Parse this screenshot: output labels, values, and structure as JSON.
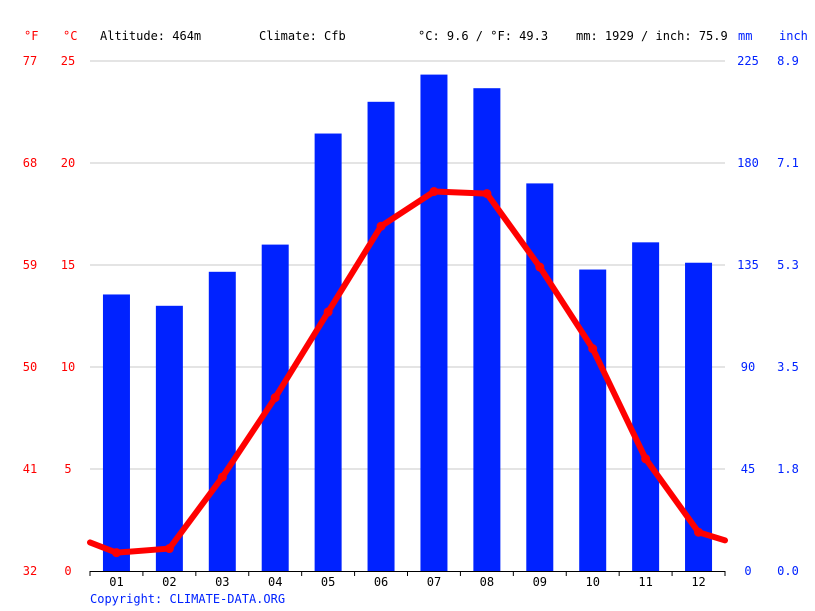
{
  "header": {
    "f_unit": "°F",
    "c_unit": "°C",
    "altitude": "Altitude: 464m",
    "climate": "Climate: Cfb",
    "temp_summary": "°C: 9.6 / °F: 49.3",
    "precip_summary": "mm: 1929 / inch: 75.9",
    "mm_unit": "mm",
    "inch_unit": "inch"
  },
  "copyright": "Copyright: CLIMATE-DATA.ORG",
  "colors": {
    "temperature": "#ff0000",
    "precipitation": "#0022ff",
    "grid": "#c8c8c8",
    "axis_text_left": "#ff0000",
    "axis_text_right": "#0022ff",
    "text": "#000000"
  },
  "chart_data": {
    "type": "bar",
    "categories": [
      "01",
      "02",
      "03",
      "04",
      "05",
      "06",
      "07",
      "08",
      "09",
      "10",
      "11",
      "12"
    ],
    "series": [
      {
        "values": [
          122,
          117,
          132,
          144,
          193,
          207,
          219,
          213,
          171,
          133,
          145,
          136
        ]
      },
      {
        "type": "line",
        "values": [
          0.9,
          1.1,
          4.6,
          8.5,
          12.7,
          16.9,
          18.6,
          18.5,
          14.9,
          10.9,
          5.5,
          1.9
        ]
      }
    ],
    "temp_edges": [
      1.4,
      1.5
    ],
    "y_left_c": {
      "ticks": [
        "0",
        "5",
        "10",
        "15",
        "20",
        "25"
      ],
      "range": [
        0,
        25
      ]
    },
    "y_left_f": {
      "ticks": [
        "32",
        "41",
        "50",
        "59",
        "68",
        "77"
      ]
    },
    "y_right_mm": {
      "ticks": [
        "0",
        "45",
        "90",
        "135",
        "180",
        "225"
      ],
      "range": [
        0,
        225
      ]
    },
    "y_right_inch": {
      "ticks": [
        "0.0",
        "1.8",
        "3.5",
        "5.3",
        "7.1",
        "8.9"
      ]
    },
    "grid": true
  }
}
